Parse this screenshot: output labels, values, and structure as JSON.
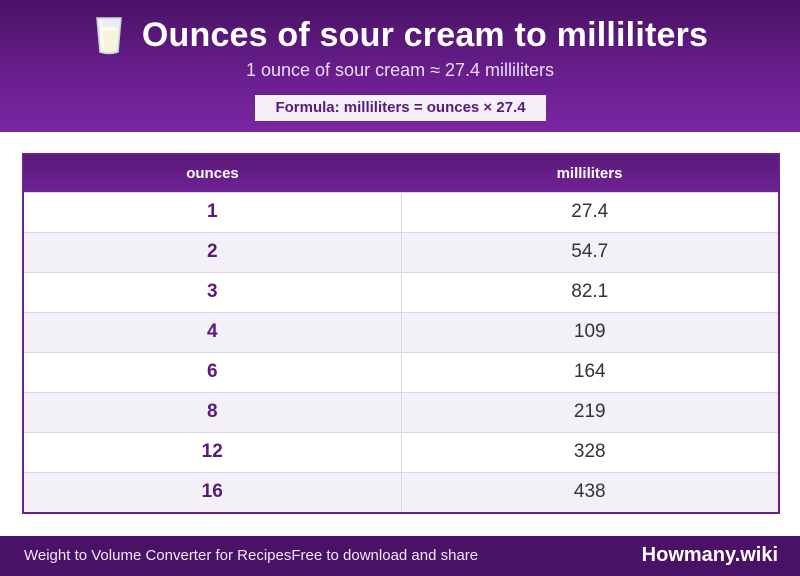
{
  "header": {
    "icon": "milk-glass-icon",
    "title": "Ounces of sour cream to milliliters",
    "subtitle": "1 ounce of sour cream ≈ 27.4 milliliters",
    "formula": "Formula: milliliters = ounces × 27.4"
  },
  "table": {
    "columns": [
      "ounces",
      "milliliters"
    ],
    "rows": [
      [
        "1",
        "27.4"
      ],
      [
        "2",
        "54.7"
      ],
      [
        "3",
        "82.1"
      ],
      [
        "4",
        "109"
      ],
      [
        "6",
        "164"
      ],
      [
        "8",
        "219"
      ],
      [
        "12",
        "328"
      ],
      [
        "16",
        "438"
      ]
    ]
  },
  "footer": {
    "left_text": "Weight to Volume Converter for RecipesFree to download and share",
    "brand": "Howmany.wiki"
  },
  "colors": {
    "header_bg": "#5a1a7a",
    "accent": "#6a1f8f",
    "row_alt": "#f4f0f8"
  }
}
